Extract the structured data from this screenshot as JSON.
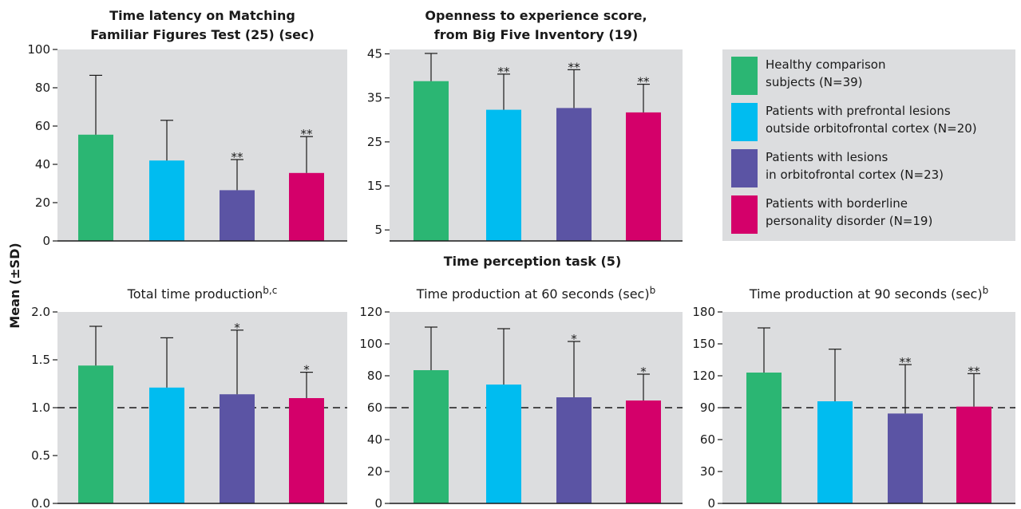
{
  "y_axis_label": "Mean (±SD)",
  "section_title": "Time perception task (5)",
  "colors": {
    "panel_bg": "#dcdddf",
    "series": [
      "#2bb673",
      "#00bcf0",
      "#5b54a4",
      "#d4006a"
    ]
  },
  "legend": [
    {
      "lines": [
        "Healthy comparison",
        "subjects (N=39)"
      ]
    },
    {
      "lines": [
        "Patients with prefrontal lesions",
        "outside orbitofrontal cortex (N=20)"
      ]
    },
    {
      "lines": [
        "Patients with lesions",
        "in orbitofrontal cortex (N=23)"
      ]
    },
    {
      "lines": [
        "Patients with borderline",
        "personality disorder (N=19)"
      ]
    }
  ],
  "chart_data": [
    {
      "type": "bar",
      "title_lines": [
        "Time latency on Matching",
        "Familiar Figures Test (25) (sec)"
      ],
      "title_bold": true,
      "title_sup": "",
      "ylim": [
        0,
        100
      ],
      "yticks": [
        "0",
        "20",
        "40",
        "60",
        "80",
        "100"
      ],
      "values": [
        55.5,
        42,
        26.5,
        35.5
      ],
      "errors": [
        31,
        21,
        16,
        19
      ],
      "stars": [
        "",
        "",
        "**",
        "**"
      ],
      "reference_line": null
    },
    {
      "type": "bar",
      "title_lines": [
        "Openness to experience score,",
        "from Big Five Inventory (19)"
      ],
      "title_bold": true,
      "title_sup": "",
      "ylim": [
        2.5,
        46
      ],
      "yticks": [
        "5",
        "15",
        "25",
        "35",
        "45"
      ],
      "values": [
        38.8,
        32.3,
        32.7,
        31.7
      ],
      "errors": [
        6.3,
        8.1,
        8.7,
        6.4
      ],
      "stars": [
        "",
        "**",
        "**",
        "**"
      ],
      "reference_line": null
    },
    {
      "type": "bar",
      "title_lines": [
        "Total time production"
      ],
      "title_bold": false,
      "title_sup": "b,c",
      "ylim": [
        0,
        2
      ],
      "yticks": [
        "0.0",
        "0.5",
        "1.0",
        "1.5",
        "2.0"
      ],
      "values": [
        1.44,
        1.21,
        1.14,
        1.1
      ],
      "errors": [
        0.41,
        0.52,
        0.67,
        0.27
      ],
      "stars": [
        "",
        "",
        "*",
        "*"
      ],
      "reference_line": 1.0
    },
    {
      "type": "bar",
      "title_lines": [
        "Time production at 60 seconds (sec)"
      ],
      "title_bold": false,
      "title_sup": "b",
      "ylim": [
        0,
        120
      ],
      "yticks": [
        "0",
        "20",
        "40",
        "60",
        "80",
        "100",
        "120"
      ],
      "values": [
        83.5,
        74.5,
        66.5,
        64.5
      ],
      "errors": [
        27,
        35,
        35,
        16.5
      ],
      "stars": [
        "",
        "",
        "*",
        "*"
      ],
      "reference_line": 60
    },
    {
      "type": "bar",
      "title_lines": [
        "Time production at 90 seconds (sec)"
      ],
      "title_bold": false,
      "title_sup": "b",
      "ylim": [
        0,
        180
      ],
      "yticks": [
        "0",
        "30",
        "60",
        "90",
        "120",
        "150",
        "180"
      ],
      "values": [
        123,
        96,
        84.5,
        91
      ],
      "errors": [
        42,
        49,
        46,
        31
      ],
      "stars": [
        "",
        "",
        "**",
        "**"
      ],
      "reference_line": 90
    }
  ]
}
